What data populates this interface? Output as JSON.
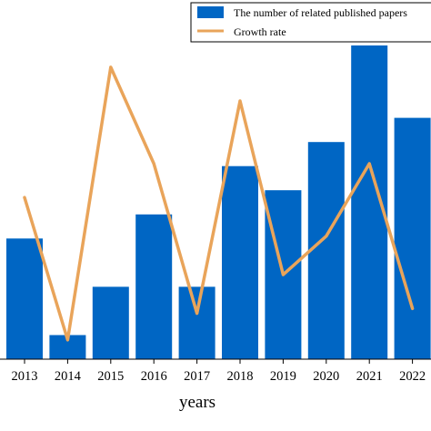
{
  "chart_data": {
    "type": "bar",
    "categories": [
      "2013",
      "2014",
      "2015",
      "2016",
      "2017",
      "2018",
      "2019",
      "2020",
      "2021",
      "2022"
    ],
    "series": [
      {
        "name": "The number of related published papers",
        "type": "bar",
        "values": [
          5,
          1,
          3,
          6,
          3,
          8,
          7,
          9,
          13,
          10
        ],
        "color": "#0066c4"
      },
      {
        "name": "Growth rate",
        "type": "line",
        "values": [
          6.7,
          0.8,
          12.1,
          8.1,
          1.9,
          10.7,
          3.5,
          5.1,
          8.1,
          2.1
        ],
        "color": "#e9a45a"
      }
    ],
    "xlabel": "years",
    "ylabel": "",
    "ylim": [
      0,
      13
    ],
    "legend_position": "top-right",
    "grid": false
  }
}
